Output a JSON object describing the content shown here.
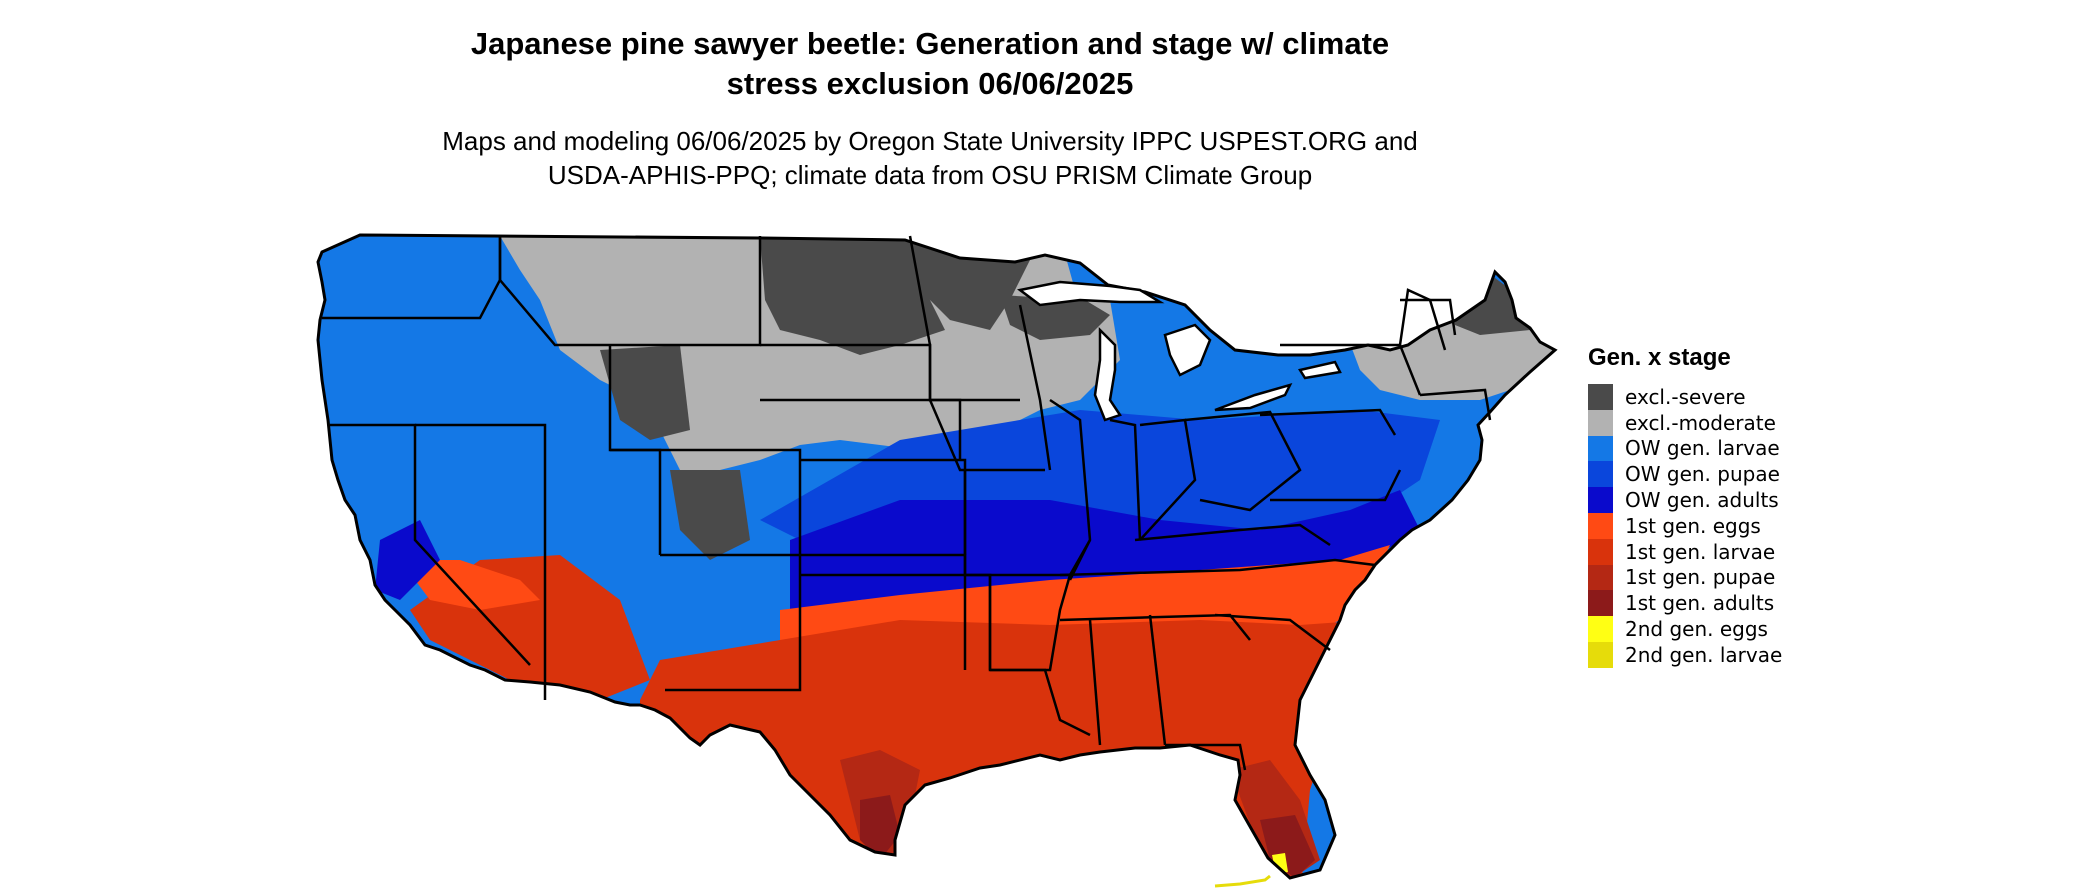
{
  "title_line1": "Japanese pine sawyer beetle: Generation and stage w/ climate",
  "title_line2": "stress exclusion 06/06/2025",
  "subtitle_line1": "Maps and modeling 06/06/2025 by Oregon State University IPPC USPEST.ORG and",
  "subtitle_line2": "USDA-APHIS-PPQ; climate data from OSU PRISM Climate Group",
  "legend": {
    "title": "Gen. x stage",
    "items": [
      {
        "label": "excl.-severe",
        "color": "#4a4a4a"
      },
      {
        "label": "excl.-moderate",
        "color": "#b2b2b2"
      },
      {
        "label": "OW gen. larvae",
        "color": "#1478e6"
      },
      {
        "label": "OW gen. pupae",
        "color": "#0a46dc"
      },
      {
        "label": "OW gen. adults",
        "color": "#0a0acc"
      },
      {
        "label": "1st gen. eggs",
        "color": "#ff4a14"
      },
      {
        "label": "1st gen. larvae",
        "color": "#d9330c"
      },
      {
        "label": "1st gen. pupae",
        "color": "#b42814"
      },
      {
        "label": "1st gen. adults",
        "color": "#8c1a1a"
      },
      {
        "label": "2nd gen. eggs",
        "color": "#ffff14"
      },
      {
        "label": "2nd gen. larvae",
        "color": "#e6dc0a"
      }
    ]
  }
}
